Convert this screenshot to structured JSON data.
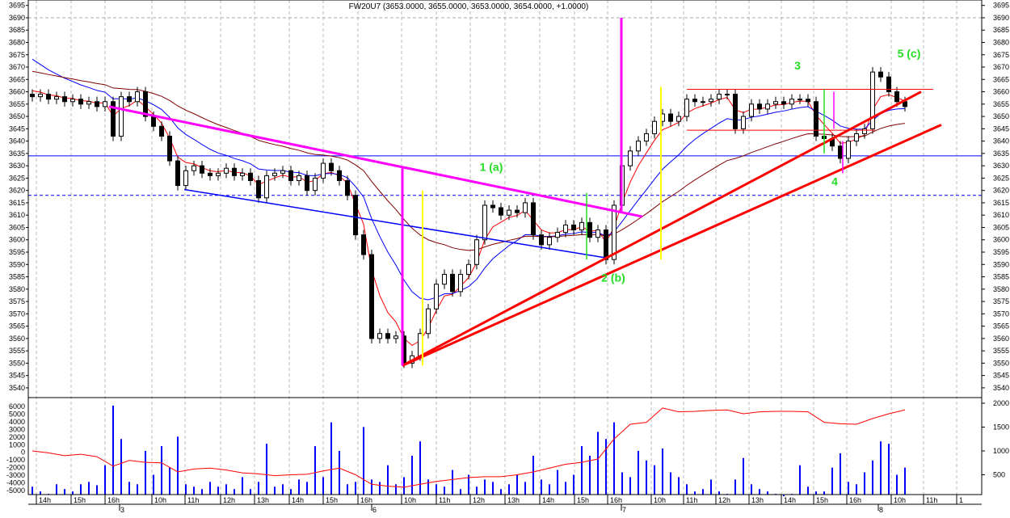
{
  "chart_data": {
    "type": "candlestick",
    "title": "FW20U7 (3653.0000, 3655.0000, 3653.0000, 3654.0000, +1.0000)",
    "price_axis": {
      "min": 3535,
      "max": 3695,
      "step": 5
    },
    "volume_axis_left": {
      "min": -5000,
      "max": 6000,
      "step": 1000
    },
    "volume_axis_right": {
      "ticks": [
        2000,
        1500,
        1000,
        500
      ]
    },
    "grid": "vertical dashed at hours",
    "colors": {
      "up_body": "#ffffff",
      "down_body": "#000000",
      "ma_fast": "#ff0000",
      "ma_mid": "#0000ff",
      "ma_slow": "#800000",
      "volume": "#0000ff",
      "volume_line": "#ff0000",
      "wave_label": "#22dd22"
    },
    "closes": [
      3658,
      3659,
      3657,
      3658,
      3656,
      3657,
      3655,
      3656,
      3654,
      3656,
      3642,
      3658,
      3656,
      3660,
      3650,
      3646,
      3642,
      3632,
      3622,
      3628,
      3630,
      3627,
      3626,
      3627,
      3629,
      3626,
      3627,
      3624,
      3617,
      3626,
      3627,
      3628,
      3624,
      3626,
      3620,
      3625,
      3631,
      3628,
      3624,
      3618,
      3602,
      3594,
      3560,
      3562,
      3560,
      3561,
      3550,
      3553,
      3562,
      3572,
      3582,
      3586,
      3579,
      3586,
      3590,
      3600,
      3614,
      3613,
      3610,
      3612,
      3611,
      3615,
      3602,
      3598,
      3601,
      3603,
      3606,
      3604,
      3607,
      3601,
      3604,
      3592,
      3614,
      3630,
      3636,
      3640,
      3643,
      3648,
      3651,
      3648,
      3650,
      3657,
      3656,
      3656,
      3657,
      3659,
      3659,
      3645,
      3650,
      3655,
      3653,
      3655,
      3656,
      3655,
      3657,
      3657,
      3656,
      3642,
      3641,
      3638,
      3633,
      3640,
      3643,
      3645,
      3668,
      3666,
      3660,
      3656,
      3654
    ],
    "volume": [
      250,
      150,
      100,
      300,
      200,
      150,
      300,
      350,
      280,
      700,
      1950,
      1250,
      350,
      300,
      1000,
      500,
      1100,
      650,
      1300,
      300,
      250,
      200,
      350,
      250,
      300,
      200,
      450,
      200,
      350,
      1150,
      250,
      300,
      200,
      400,
      350,
      1100,
      450,
      1600,
      1000,
      300,
      350,
      1500,
      400,
      350,
      700,
      300,
      450,
      900,
      1200,
      400,
      300,
      250,
      600,
      200,
      500,
      250,
      400,
      350,
      200,
      300,
      500,
      350,
      900,
      400,
      300,
      600,
      350,
      500,
      1100,
      900,
      1400,
      1250,
      1600,
      550,
      450,
      1000,
      800,
      700,
      1050,
      550,
      450,
      300,
      150,
      200,
      400,
      150,
      100,
      400,
      850,
      300,
      200,
      150,
      100,
      50,
      100,
      700,
      250,
      150,
      150,
      650,
      950,
      350,
      300,
      550,
      800,
      1200,
      1150,
      500,
      650
    ],
    "volume_line_every_2_bars": [
      1000,
      960,
      900,
      930,
      880,
      680,
      800,
      760,
      750,
      560,
      620,
      640,
      600,
      540,
      520,
      480,
      500,
      510,
      580,
      640,
      500,
      300,
      260,
      240,
      300,
      360,
      400,
      440,
      460,
      460,
      500,
      560,
      640,
      720,
      760,
      830,
      1250,
      1560,
      1600,
      1900,
      1820,
      1830,
      1850,
      1860,
      1780,
      1820,
      1830,
      1830,
      1820,
      1600,
      1570,
      1560,
      1680,
      1780,
      1860
    ],
    "time_ticks": [
      {
        "label": "14h",
        "bar": 0.5
      },
      {
        "label": "15h",
        "bar": 4.8
      },
      {
        "label": "16h",
        "bar": 9
      },
      {
        "label": "10h",
        "bar": 14.8
      },
      {
        "label": "11h",
        "bar": 18.9
      },
      {
        "label": "12h",
        "bar": 23.3
      },
      {
        "label": "13h",
        "bar": 27.5
      },
      {
        "label": "14h",
        "bar": 31.8
      },
      {
        "label": "15h",
        "bar": 36
      },
      {
        "label": "16h",
        "bar": 40.3
      },
      {
        "label": "10h",
        "bar": 45.7
      },
      {
        "label": "11h",
        "bar": 50
      },
      {
        "label": "12h",
        "bar": 54.2
      },
      {
        "label": "13h",
        "bar": 58.5
      },
      {
        "label": "14h",
        "bar": 62.8
      },
      {
        "label": "15h",
        "bar": 67.1
      },
      {
        "label": "16h",
        "bar": 71.2
      },
      {
        "label": "10h",
        "bar": 76.6
      },
      {
        "label": "11h",
        "bar": 80.6
      },
      {
        "label": "12h",
        "bar": 84.6
      },
      {
        "label": "13h",
        "bar": 88.7
      },
      {
        "label": "14h",
        "bar": 92.7
      },
      {
        "label": "15h",
        "bar": 96.7
      },
      {
        "label": "16h",
        "bar": 100.8
      },
      {
        "label": "10h",
        "bar": 106.3
      },
      {
        "label": "11h",
        "bar": 110.3
      },
      {
        "label": "1",
        "bar": 114.4
      }
    ],
    "day_ticks": [
      {
        "label": "3",
        "bar": 10.8
      },
      {
        "label": "6",
        "bar": 42
      },
      {
        "label": "7",
        "bar": 72.9
      },
      {
        "label": "8",
        "bar": 104.7
      }
    ],
    "horizontal_lines": [
      {
        "price": 3634,
        "color": "#0000ff",
        "style": "solid"
      },
      {
        "price": 3618,
        "color": "#0000ff",
        "style": "dashed"
      },
      {
        "price": 3690,
        "color": "#aaaaaa",
        "style": "dashed"
      }
    ],
    "annotations": [
      {
        "kind": "trendline",
        "color": "#ff00ff",
        "width": 3,
        "from": [
          9.5,
          3654
        ],
        "to": [
          75.5,
          3609.4
        ]
      },
      {
        "kind": "trendline",
        "color": "#0000ff",
        "width": 1.5,
        "from": [
          18.8,
          3620.4
        ],
        "to": [
          71.2,
          3592.6
        ]
      },
      {
        "kind": "trendline",
        "color": "#ff0000",
        "width": 3,
        "from": [
          45.8,
          3549
        ],
        "to": [
          110,
          3660
        ]
      },
      {
        "kind": "trendline",
        "color": "#ff0000",
        "width": 3,
        "from": [
          45.8,
          3549
        ],
        "to": [
          112.5,
          3646.6
        ]
      },
      {
        "kind": "trendline",
        "color": "#ff0000",
        "width": 1,
        "from": [
          81,
          3661
        ],
        "to": [
          111.5,
          3661
        ]
      },
      {
        "kind": "trendline",
        "color": "#ff0000",
        "width": 1,
        "from": [
          81,
          3644.4
        ],
        "to": [
          104.3,
          3644.4
        ]
      },
      {
        "kind": "vertical",
        "color": "#ff00ff",
        "width": 3,
        "bar": 45.8,
        "from": 3629,
        "to": 3549
      },
      {
        "kind": "vertical",
        "color": "#ff00ff",
        "width": 3,
        "bar": 72.9,
        "from": 3690,
        "to": 3611
      },
      {
        "kind": "vertical",
        "color": "#ff00ff",
        "width": 1.5,
        "bar": 99.2,
        "from": 3660,
        "to": 3645
      },
      {
        "kind": "vertical",
        "color": "#ff00ff",
        "width": 1.5,
        "bar": 100.3,
        "from": 3640,
        "to": 3627
      },
      {
        "kind": "vertical",
        "color": "#ffff00",
        "width": 2,
        "bar": 48.3,
        "from": 3620,
        "to": 3549
      },
      {
        "kind": "vertical",
        "color": "#ffff00",
        "width": 2,
        "bar": 77.8,
        "from": 3662,
        "to": 3592
      },
      {
        "kind": "vertical",
        "color": "#22dd22",
        "width": 1.5,
        "bar": 68.6,
        "from": 3619,
        "to": 3592
      },
      {
        "kind": "vertical",
        "color": "#22dd22",
        "width": 1.5,
        "bar": 98,
        "from": 3661,
        "to": 3635
      }
    ],
    "wave_labels": [
      {
        "text": "1 (a)",
        "bar": 56.8,
        "price": 3628
      },
      {
        "text": "2 (b)",
        "bar": 71.9,
        "price": 3583
      },
      {
        "text": "3",
        "bar": 94.7,
        "price": 3669
      },
      {
        "text": "4",
        "bar": 99.3,
        "price": 3622
      },
      {
        "text": "5 (c)",
        "bar": 108.5,
        "price": 3674
      }
    ]
  }
}
